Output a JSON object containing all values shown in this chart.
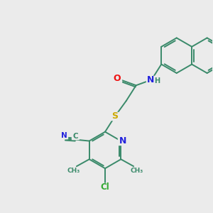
{
  "bg_color": "#ebebeb",
  "bond_color": "#3a8a6a",
  "atom_colors": {
    "O": "#ee1111",
    "N": "#2222dd",
    "S": "#ccaa00",
    "Cl": "#33aa33",
    "C": "#3a8a6a",
    "H": "#3a8a6a"
  },
  "figsize": [
    3.0,
    3.0
  ],
  "dpi": 100,
  "lw": 1.4,
  "font_size": 8.5
}
